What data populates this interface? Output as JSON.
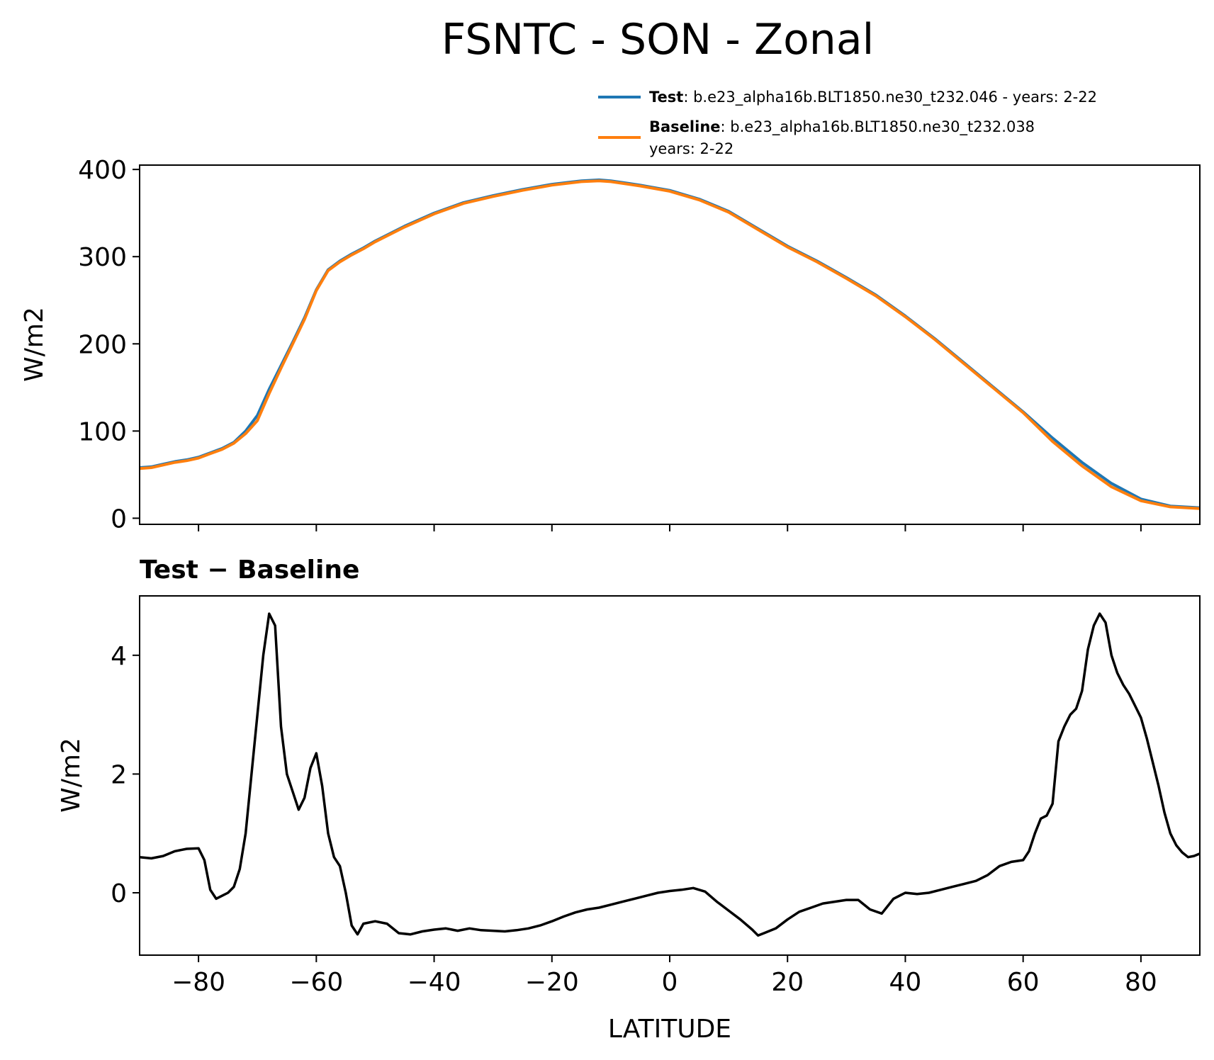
{
  "chart_data": [
    {
      "type": "line",
      "panel": "top",
      "title": "FSNTC - SON - Zonal",
      "xlabel": "",
      "ylabel": "W/m2",
      "xlim": [
        -90,
        90
      ],
      "ylim": [
        -7,
        405
      ],
      "xticks": [
        -80,
        -60,
        -40,
        -20,
        0,
        20,
        40,
        60,
        80
      ],
      "yticks": [
        0,
        100,
        200,
        300,
        400
      ],
      "ytick_labels": [
        "0",
        "100",
        "200",
        "300",
        "400"
      ],
      "grid": false,
      "legend": {
        "position": "above-top-right",
        "entries": [
          {
            "name": "Test",
            "text": ": b.e23_alpha16b.BLT1850.ne30_t232.046 - years: 2-22",
            "text2": "",
            "color": "#1f77b4"
          },
          {
            "name": "Baseline",
            "text": ": b.e23_alpha16b.BLT1850.ne30_t232.038",
            "text2": "years: 2-22",
            "color": "#ff7f0e"
          }
        ]
      },
      "x": [
        -90,
        -88,
        -86,
        -84,
        -82,
        -80,
        -78,
        -76,
        -74,
        -72,
        -70,
        -68,
        -66,
        -64,
        -62,
        -60,
        -58,
        -56,
        -54,
        -52,
        -50,
        -45,
        -40,
        -35,
        -30,
        -25,
        -20,
        -15,
        -12,
        -10,
        -5,
        0,
        5,
        10,
        15,
        20,
        25,
        30,
        35,
        40,
        45,
        50,
        55,
        60,
        65,
        70,
        75,
        80,
        85,
        90
      ],
      "series": [
        {
          "name": "Test",
          "color": "#1f77b4",
          "values": [
            58,
            59,
            62,
            65,
            67,
            70,
            75,
            80,
            87,
            100,
            118,
            148,
            175,
            202,
            230,
            262,
            285,
            295,
            303,
            310,
            318,
            335,
            350,
            362,
            370,
            377,
            383,
            387,
            388,
            387,
            382,
            376,
            366,
            352,
            332,
            312,
            295,
            276,
            256,
            232,
            206,
            178,
            150,
            122,
            92,
            64,
            40,
            22,
            14,
            12
          ]
        },
        {
          "name": "Baseline",
          "color": "#ff7f0e",
          "values": [
            57,
            58,
            61,
            64,
            66,
            69,
            74,
            79,
            86,
            97,
            112,
            143,
            172,
            200,
            228,
            261,
            284,
            294,
            302,
            309,
            317,
            334,
            349,
            361,
            369,
            376,
            382,
            386,
            387,
            386,
            381,
            375,
            365,
            351,
            331,
            311,
            294,
            275,
            255,
            231,
            205,
            177,
            149,
            121,
            88,
            60,
            36,
            20,
            13,
            11
          ]
        }
      ]
    },
    {
      "type": "line",
      "panel": "bottom",
      "title": "Test − Baseline",
      "xlabel": "LATITUDE",
      "ylabel": "W/m2",
      "xlim": [
        -90,
        90
      ],
      "ylim": [
        -1.05,
        5.0
      ],
      "xticks": [
        -80,
        -60,
        -40,
        -20,
        0,
        20,
        40,
        60,
        80
      ],
      "xtick_labels": [
        "−80",
        "−60",
        "−40",
        "−20",
        "0",
        "20",
        "40",
        "60",
        "80"
      ],
      "yticks": [
        0,
        2,
        4
      ],
      "ytick_labels": [
        "0",
        "2",
        "4"
      ],
      "grid": false,
      "series": [
        {
          "name": "",
          "color": "#000000",
          "x": [
            -90,
            -88,
            -86,
            -84,
            -82,
            -80,
            -79,
            -78,
            -77,
            -76,
            -75,
            -74,
            -73,
            -72,
            -71,
            -70,
            -69,
            -68,
            -67,
            -66,
            -65,
            -64,
            -63,
            -62,
            -61,
            -60,
            -59,
            -58,
            -57,
            -56,
            -55,
            -54,
            -53,
            -52,
            -50,
            -48,
            -46,
            -44,
            -42,
            -40,
            -38,
            -36,
            -34,
            -32,
            -30,
            -28,
            -26,
            -24,
            -22,
            -20,
            -18,
            -16,
            -14,
            -12,
            -10,
            -8,
            -6,
            -4,
            -2,
            0,
            2,
            4,
            6,
            8,
            10,
            12,
            14,
            15,
            16,
            18,
            20,
            22,
            24,
            26,
            28,
            30,
            32,
            34,
            36,
            38,
            40,
            42,
            44,
            46,
            48,
            50,
            52,
            54,
            56,
            58,
            60,
            61,
            62,
            63,
            64,
            65,
            66,
            67,
            68,
            69,
            70,
            71,
            72,
            73,
            74,
            75,
            76,
            77,
            78,
            79,
            80,
            81,
            82,
            83,
            84,
            85,
            86,
            87,
            88,
            89,
            90
          ],
          "values": [
            0.6,
            0.58,
            0.62,
            0.7,
            0.74,
            0.75,
            0.55,
            0.05,
            -0.1,
            -0.05,
            0.0,
            0.1,
            0.4,
            1.0,
            2.0,
            3.0,
            4.0,
            4.7,
            4.5,
            2.8,
            2.0,
            1.7,
            1.4,
            1.6,
            2.1,
            2.35,
            1.8,
            1.0,
            0.6,
            0.45,
            0.0,
            -0.55,
            -0.7,
            -0.52,
            -0.48,
            -0.52,
            -0.68,
            -0.7,
            -0.65,
            -0.62,
            -0.6,
            -0.64,
            -0.6,
            -0.63,
            -0.64,
            -0.65,
            -0.63,
            -0.6,
            -0.55,
            -0.48,
            -0.4,
            -0.33,
            -0.28,
            -0.25,
            -0.2,
            -0.15,
            -0.1,
            -0.05,
            0.0,
            0.03,
            0.05,
            0.08,
            0.02,
            -0.15,
            -0.3,
            -0.45,
            -0.62,
            -0.72,
            -0.68,
            -0.6,
            -0.45,
            -0.32,
            -0.25,
            -0.18,
            -0.15,
            -0.12,
            -0.12,
            -0.28,
            -0.35,
            -0.1,
            0.0,
            -0.02,
            0.0,
            0.05,
            0.1,
            0.15,
            0.2,
            0.3,
            0.45,
            0.52,
            0.55,
            0.7,
            1.0,
            1.25,
            1.3,
            1.5,
            2.55,
            2.8,
            3.0,
            3.1,
            3.4,
            4.1,
            4.5,
            4.7,
            4.55,
            4.0,
            3.7,
            3.5,
            3.35,
            3.15,
            2.95,
            2.6,
            2.2,
            1.8,
            1.35,
            1.0,
            0.8,
            0.68,
            0.6,
            0.62,
            0.66
          ]
        }
      ]
    }
  ]
}
